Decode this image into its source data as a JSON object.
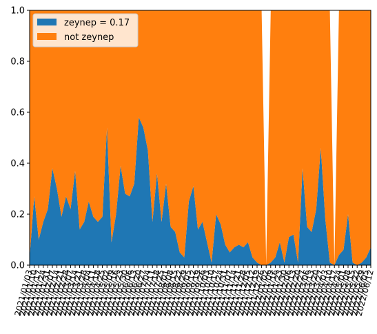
{
  "chart_data": {
    "type": "stacked_area",
    "categories": [
      "2021/01/03",
      "2021/01/10",
      "2021/01/17",
      "2021/01/24",
      "2021/01/31",
      "2021/02/07",
      "2021/02/14",
      "2021/02/21",
      "2021/02/28",
      "2021/03/07",
      "2021/03/14",
      "2021/03/21",
      "2021/03/28",
      "2021/04/04",
      "2021/04/11",
      "2021/04/18",
      "2021/04/25",
      "2021/05/02",
      "2021/05/09",
      "2021/05/16",
      "2021/05/23",
      "2021/05/30",
      "2021/06/06",
      "2021/06/13",
      "2021/06/20",
      "2021/06/27",
      "2021/07/04",
      "2021/07/11",
      "2021/07/18",
      "2021/07/25",
      "2021/08/01",
      "2021/08/08",
      "2021/08/15",
      "2021/08/22",
      "2021/08/29",
      "2021/09/05",
      "2021/09/12",
      "2021/09/19",
      "2021/09/26",
      "2021/10/03",
      "2021/10/10",
      "2021/10/17",
      "2021/10/24",
      "2021/10/31",
      "2021/11/07",
      "2021/11/14",
      "2021/11/21",
      "2021/11/28",
      "2021/12/05",
      "2021/12/12",
      "2021/12/19",
      "2021/12/26",
      "2022/01/02",
      "2022/01/09",
      "2022/01/16",
      "2022/01/23",
      "2022/01/30",
      "2022/02/06",
      "2022/02/13",
      "2022/02/20",
      "2022/02/27",
      "2022/03/06",
      "2022/03/13",
      "2022/03/20",
      "2022/03/27",
      "2022/04/03",
      "2022/04/10",
      "2022/04/17",
      "2022/04/24",
      "2022/05/01",
      "2022/05/08",
      "2022/05/15",
      "2022/05/22",
      "2022/05/29",
      "2022/06/05",
      "2022/06/12"
    ],
    "series": [
      {
        "name": "zeynep = 0.17",
        "color": "#1f77b4",
        "values": [
          0.03,
          0.27,
          0.1,
          0.17,
          0.22,
          0.38,
          0.3,
          0.19,
          0.27,
          0.22,
          0.37,
          0.14,
          0.17,
          0.25,
          0.19,
          0.17,
          0.19,
          0.54,
          0.09,
          0.2,
          0.39,
          0.28,
          0.27,
          0.32,
          0.58,
          0.54,
          0.45,
          0.17,
          0.36,
          0.17,
          0.32,
          0.15,
          0.13,
          0.05,
          0.03,
          0.25,
          0.31,
          0.14,
          0.17,
          0.09,
          0.01,
          0.2,
          0.16,
          0.08,
          0.05,
          0.07,
          0.08,
          0.07,
          0.09,
          0.03,
          0.01,
          0,
          0,
          0.01,
          0.03,
          0.09,
          0.01,
          0.11,
          0.12,
          0.01,
          0.38,
          0.15,
          0.13,
          0.22,
          0.46,
          0.18,
          0.01,
          0,
          0.04,
          0.06,
          0.2,
          0.01,
          0,
          0.01,
          0.03,
          0.07
        ]
      },
      {
        "name": "not zeynep",
        "color": "#ff7f0e",
        "values": [
          0.97,
          0.73,
          0.9,
          0.83,
          0.78,
          0.62,
          0.7,
          0.81,
          0.73,
          0.78,
          0.63,
          0.86,
          0.83,
          0.75,
          0.81,
          0.83,
          0.81,
          0.46,
          0.91,
          0.8,
          0.61,
          0.72,
          0.73,
          0.68,
          0.42,
          0.46,
          0.55,
          0.83,
          0.64,
          0.83,
          0.68,
          0.85,
          0.87,
          0.95,
          0.97,
          0.75,
          0.69,
          0.86,
          0.83,
          0.91,
          0.99,
          0.8,
          0.84,
          0.92,
          0.95,
          0.93,
          0.92,
          0.93,
          0.91,
          0.97,
          0.99,
          1,
          0,
          0.99,
          0.97,
          0.91,
          0.99,
          0.89,
          0.88,
          0.99,
          0.62,
          0.85,
          0.87,
          0.78,
          0.54,
          0.82,
          0.99,
          0,
          0.96,
          0.94,
          0.8,
          0.99,
          1,
          0.99,
          0.97,
          0.93
        ]
      }
    ],
    "ylim": [
      0,
      1
    ],
    "yticks": [
      {
        "value": 0,
        "label": "0.0"
      },
      {
        "value": 0.2,
        "label": "0.2"
      },
      {
        "value": 0.4,
        "label": "0.4"
      },
      {
        "value": 0.6,
        "label": "0.6"
      },
      {
        "value": 0.8,
        "label": "0.8"
      },
      {
        "value": 1,
        "label": "1.0"
      }
    ],
    "legend": "upper left",
    "grid": false
  }
}
